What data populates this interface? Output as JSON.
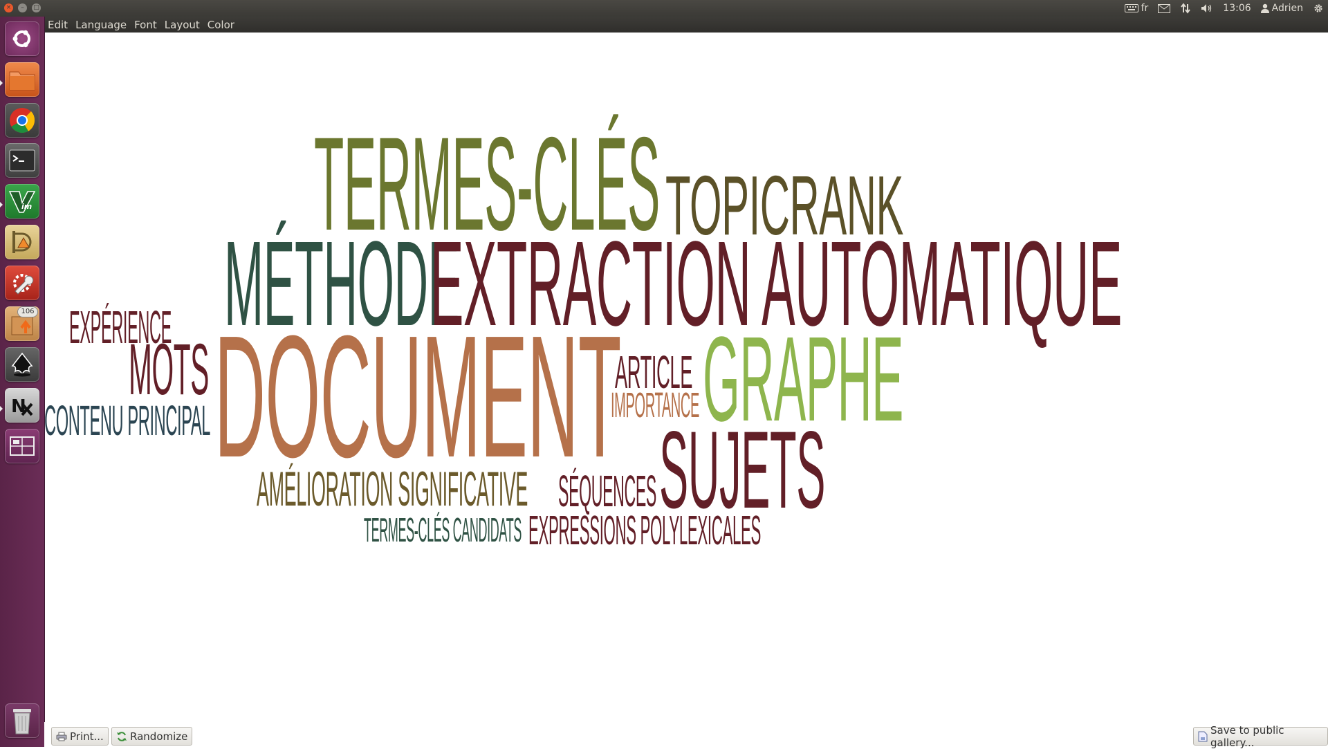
{
  "panel": {
    "keyboard_layout": "fr",
    "clock": "13:06",
    "user": "Adrien"
  },
  "menubar": {
    "items": [
      "Edit",
      "Language",
      "Font",
      "Layout",
      "Color"
    ]
  },
  "launcher": {
    "items": [
      {
        "name": "dash-home"
      },
      {
        "name": "files"
      },
      {
        "name": "chrome"
      },
      {
        "name": "terminal"
      },
      {
        "name": "vim"
      },
      {
        "name": "inkscape-draw"
      },
      {
        "name": "settings"
      },
      {
        "name": "update-manager",
        "badge": "106"
      },
      {
        "name": "inkscape"
      },
      {
        "name": "nx"
      },
      {
        "name": "workspace-switcher"
      },
      {
        "name": "trash"
      }
    ]
  },
  "cloud": {
    "words": [
      {
        "text": "TERMES-CLÉS",
        "color": "#6b772f"
      },
      {
        "text": "TOPICRANK",
        "color": "#5b5128"
      },
      {
        "text": "MÉTHODE",
        "color": "#2f5244"
      },
      {
        "text": "EXTRACTION AUTOMATIQUE",
        "color": "#621f27"
      },
      {
        "text": "EXPÉRIENCE",
        "color": "#621f27"
      },
      {
        "text": "MOTS",
        "color": "#621f27"
      },
      {
        "text": "DOCUMENT",
        "color": "#b5714a"
      },
      {
        "text": "ARTICLE",
        "color": "#621f27"
      },
      {
        "text": "IMPORTANCE",
        "color": "#b5714a"
      },
      {
        "text": "GRAPHE",
        "color": "#8eb54d"
      },
      {
        "text": "CONTENU PRINCIPAL",
        "color": "#2b4552"
      },
      {
        "text": "SUJETS",
        "color": "#621f27"
      },
      {
        "text": "AMÉLIORATION SIGNIFICATIVE",
        "color": "#6b5a2b"
      },
      {
        "text": "SÉQUENCES",
        "color": "#621f27"
      },
      {
        "text": "TERMES-CLÉS CANDIDATS",
        "color": "#2f5244"
      },
      {
        "text": "EXPRESSIONS POLYLEXICALES",
        "color": "#621f27"
      }
    ]
  },
  "bottombar": {
    "print_label": "Print...",
    "randomize_label": "Randomize",
    "save_label": "Save to public gallery..."
  }
}
